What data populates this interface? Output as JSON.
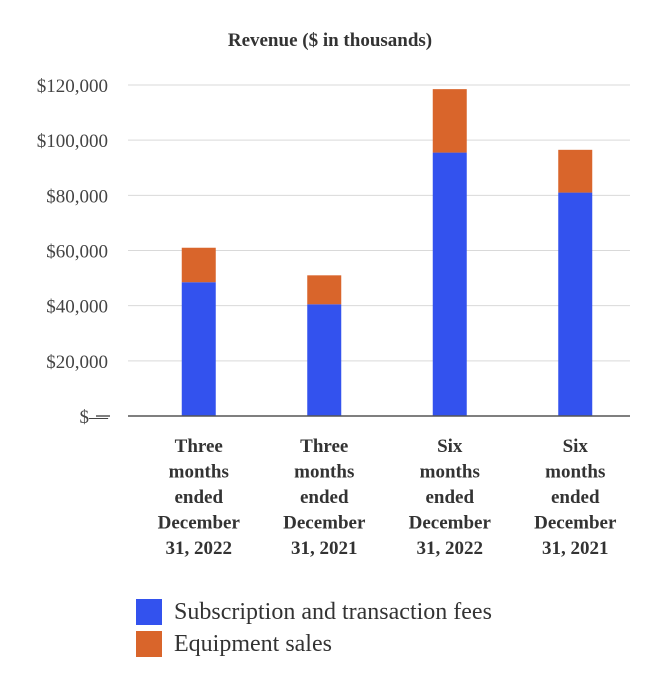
{
  "chart_data": {
    "type": "bar",
    "stacked": true,
    "title": "Revenue ($ in thousands)",
    "xlabel": "",
    "ylabel": "",
    "ylim": [
      0,
      120000
    ],
    "yticks": [
      0,
      20000,
      40000,
      60000,
      80000,
      100000,
      120000
    ],
    "ytick_labels": [
      "$—",
      "$20,000",
      "$40,000",
      "$60,000",
      "$80,000",
      "$100,000",
      "$120,000"
    ],
    "categories": [
      [
        "Three",
        "months",
        "ended",
        "December",
        "31, 2022"
      ],
      [
        "Three",
        "months",
        "ended",
        "December",
        "31, 2021"
      ],
      [
        "Six",
        "months",
        "ended",
        "December",
        "31, 2022"
      ],
      [
        "Six",
        "months",
        "ended",
        "December",
        "31, 2021"
      ]
    ],
    "series": [
      {
        "name": "Subscription and transaction fees",
        "color": "#3352ee",
        "values": [
          48500,
          40500,
          95500,
          81000
        ]
      },
      {
        "name": "Equipment sales",
        "color": "#d9652b",
        "values": [
          12500,
          10500,
          23000,
          15500
        ]
      }
    ],
    "grid": true,
    "legend_position": "bottom"
  }
}
